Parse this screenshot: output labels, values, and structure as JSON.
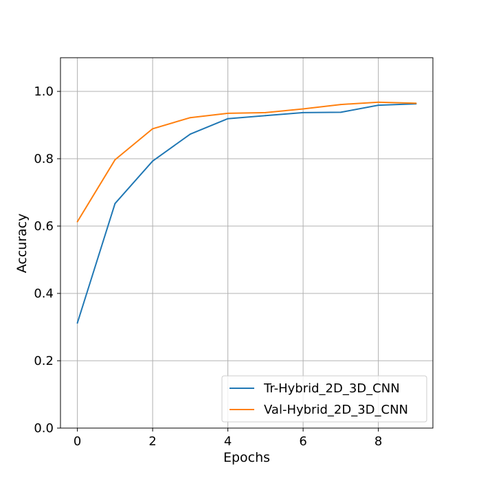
{
  "chart_data": {
    "type": "line",
    "title": "",
    "xlabel": "Epochs",
    "ylabel": "Accuracy",
    "xlim": [
      -0.45,
      9.45
    ],
    "ylim": [
      0.0,
      1.1
    ],
    "xticks": [
      0,
      2,
      4,
      6,
      8
    ],
    "yticks": [
      0.0,
      0.2,
      0.4,
      0.6,
      0.8,
      1.0
    ],
    "xtick_labels": [
      "0",
      "2",
      "4",
      "6",
      "8"
    ],
    "ytick_labels": [
      "0.0",
      "0.2",
      "0.4",
      "0.6",
      "0.8",
      "1.0"
    ],
    "grid": true,
    "legend_position": "lower-right",
    "x": [
      0,
      1,
      2,
      3,
      4,
      5,
      6,
      7,
      8,
      9
    ],
    "series": [
      {
        "name": "Tr-Hybrid_2D_3D_CNN",
        "color": "#1f77b4",
        "values": [
          0.312,
          0.667,
          0.793,
          0.873,
          0.919,
          0.928,
          0.937,
          0.938,
          0.959,
          0.963
        ]
      },
      {
        "name": "Val-Hybrid_2D_3D_CNN",
        "color": "#ff7f0e",
        "values": [
          0.613,
          0.797,
          0.889,
          0.922,
          0.935,
          0.937,
          0.948,
          0.961,
          0.968,
          0.965
        ]
      }
    ]
  }
}
